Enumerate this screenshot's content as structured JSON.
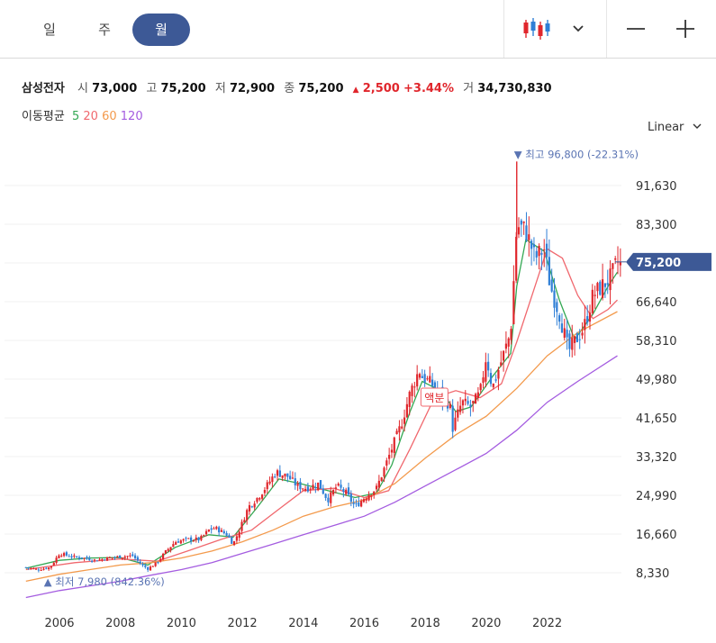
{
  "tabs": [
    "일",
    "주",
    "월"
  ],
  "active_tab": 2,
  "stock": {
    "name": "삼성전자",
    "open_label": "시",
    "open": "73,000",
    "high_label": "고",
    "high": "75,200",
    "low_label": "저",
    "low": "72,900",
    "close_label": "종",
    "close": "75,200",
    "change": "2,500",
    "change_pct": "+3.44%",
    "volume_label": "거",
    "volume": "34,730,830"
  },
  "ma": {
    "label": "이동평균",
    "items": [
      {
        "period": "5",
        "color": "#33a853"
      },
      {
        "period": "20",
        "color": "#f0686e"
      },
      {
        "period": "60",
        "color": "#f39a4c"
      },
      {
        "period": "120",
        "color": "#a45ce0"
      }
    ]
  },
  "scale_label": "Linear",
  "colors": {
    "up": "#e0262c",
    "down": "#2f7fd6",
    "accent": "#3d5996",
    "annotation": "#5a74b3"
  },
  "chart_data": {
    "type": "candlestick",
    "interval": "monthly",
    "x_ticks": [
      "2006",
      "2008",
      "2010",
      "2012",
      "2014",
      "2016",
      "2018",
      "2020",
      "2022"
    ],
    "y_ticks": [
      8330,
      16660,
      24990,
      33320,
      41650,
      49980,
      58310,
      66640,
      74970,
      83300,
      91630
    ],
    "y_tick_labels": [
      "8,330",
      "16,660",
      "24,990",
      "33,320",
      "41,650",
      "49,980",
      "58,310",
      "66,640",
      "",
      "83,300",
      "91,630"
    ],
    "ylim": [
      6000,
      103000
    ],
    "xlim": [
      2004.9,
      2024.4
    ],
    "current_price": {
      "value": 75200,
      "label": "75,200"
    },
    "annotations": {
      "high": {
        "value": 96800,
        "label": "최고 96,800 (-22.31%)",
        "x": 2021.0
      },
      "low": {
        "value": 7980,
        "label": "최저 7,980 (842.36%)",
        "x": 2004.9
      },
      "split": {
        "label": "액분",
        "x": 2018.3
      }
    },
    "close_path": [
      [
        2004.9,
        9.5
      ],
      [
        2005.3,
        9.0
      ],
      [
        2005.7,
        9.5
      ],
      [
        2006.0,
        12.5
      ],
      [
        2006.4,
        11.8
      ],
      [
        2006.8,
        11.5
      ],
      [
        2007.2,
        11.0
      ],
      [
        2007.6,
        11.5
      ],
      [
        2008.0,
        11.8
      ],
      [
        2008.4,
        12.0
      ],
      [
        2008.7,
        10.0
      ],
      [
        2008.9,
        9.2
      ],
      [
        2009.2,
        10.5
      ],
      [
        2009.5,
        13.0
      ],
      [
        2009.8,
        15.0
      ],
      [
        2010.2,
        15.5
      ],
      [
        2010.6,
        15.5
      ],
      [
        2010.9,
        17.5
      ],
      [
        2011.1,
        18.0
      ],
      [
        2011.5,
        16.5
      ],
      [
        2011.7,
        14.5
      ],
      [
        2011.9,
        17.5
      ],
      [
        2012.2,
        22.5
      ],
      [
        2012.5,
        24.5
      ],
      [
        2012.8,
        27.0
      ],
      [
        2013.1,
        30.0
      ],
      [
        2013.5,
        29.0
      ],
      [
        2013.8,
        27.0
      ],
      [
        2014.1,
        26.5
      ],
      [
        2014.5,
        27.5
      ],
      [
        2014.8,
        24.0
      ],
      [
        2015.1,
        27.0
      ],
      [
        2015.4,
        25.5
      ],
      [
        2015.7,
        22.5
      ],
      [
        2016.0,
        24.5
      ],
      [
        2016.4,
        26.5
      ],
      [
        2016.7,
        31.5
      ],
      [
        2016.9,
        35.0
      ],
      [
        2017.2,
        40.0
      ],
      [
        2017.5,
        47.0
      ],
      [
        2017.8,
        52.0
      ],
      [
        2017.9,
        50.5
      ],
      [
        2018.2,
        49.0
      ],
      [
        2018.5,
        46.5
      ],
      [
        2018.8,
        44.5
      ],
      [
        2018.9,
        39.5
      ],
      [
        2019.2,
        45.0
      ],
      [
        2019.5,
        44.0
      ],
      [
        2019.8,
        47.0
      ],
      [
        2020.0,
        55.0
      ],
      [
        2020.2,
        48.0
      ],
      [
        2020.5,
        54.0
      ],
      [
        2020.8,
        60.0
      ],
      [
        2020.9,
        71.0
      ],
      [
        2021.0,
        83.0
      ],
      [
        2021.3,
        82.0
      ],
      [
        2021.6,
        76.0
      ],
      [
        2021.9,
        78.0
      ],
      [
        2022.1,
        70.0
      ],
      [
        2022.4,
        64.0
      ],
      [
        2022.7,
        56.0
      ],
      [
        2022.9,
        58.0
      ],
      [
        2023.2,
        61.0
      ],
      [
        2023.5,
        68.0
      ],
      [
        2023.8,
        70.0
      ],
      [
        2024.1,
        72.0
      ],
      [
        2024.3,
        75.2
      ]
    ],
    "ma_series": [
      {
        "name": "5",
        "color": "#33a853",
        "points": [
          [
            2004.9,
            9.3
          ],
          [
            2006.0,
            11.0
          ],
          [
            2007.0,
            11.5
          ],
          [
            2008.0,
            11.6
          ],
          [
            2008.9,
            10.0
          ],
          [
            2009.8,
            13.8
          ],
          [
            2010.9,
            16.5
          ],
          [
            2011.7,
            16.0
          ],
          [
            2012.5,
            22.5
          ],
          [
            2013.2,
            28.5
          ],
          [
            2013.9,
            27.5
          ],
          [
            2014.8,
            26.0
          ],
          [
            2015.7,
            24.5
          ],
          [
            2016.4,
            25.5
          ],
          [
            2016.9,
            31.5
          ],
          [
            2017.5,
            43.0
          ],
          [
            2017.9,
            49.5
          ],
          [
            2018.5,
            47.5
          ],
          [
            2019.0,
            43.0
          ],
          [
            2019.5,
            44.0
          ],
          [
            2020.2,
            50.5
          ],
          [
            2020.8,
            55.5
          ],
          [
            2021.0,
            70.0
          ],
          [
            2021.3,
            80.0
          ],
          [
            2021.9,
            77.5
          ],
          [
            2022.4,
            67.0
          ],
          [
            2022.9,
            58.5
          ],
          [
            2023.5,
            64.0
          ],
          [
            2024.0,
            70.0
          ],
          [
            2024.3,
            73.0
          ]
        ]
      },
      {
        "name": "20",
        "color": "#f0686e",
        "points": [
          [
            2004.9,
            9.0
          ],
          [
            2006.5,
            10.5
          ],
          [
            2008.0,
            11.3
          ],
          [
            2009.2,
            10.8
          ],
          [
            2010.2,
            13.0
          ],
          [
            2011.3,
            15.5
          ],
          [
            2012.3,
            17.5
          ],
          [
            2013.2,
            22.0
          ],
          [
            2014.0,
            26.0
          ],
          [
            2015.0,
            26.5
          ],
          [
            2016.0,
            24.5
          ],
          [
            2016.8,
            26.0
          ],
          [
            2017.5,
            35.0
          ],
          [
            2018.3,
            46.0
          ],
          [
            2019.0,
            47.5
          ],
          [
            2019.8,
            46.0
          ],
          [
            2020.5,
            49.0
          ],
          [
            2021.0,
            58.0
          ],
          [
            2021.6,
            70.0
          ],
          [
            2022.0,
            78.0
          ],
          [
            2022.5,
            76.0
          ],
          [
            2023.0,
            68.0
          ],
          [
            2023.5,
            63.0
          ],
          [
            2024.0,
            65.0
          ],
          [
            2024.3,
            67.0
          ]
        ]
      },
      {
        "name": "60",
        "color": "#f39a4c",
        "points": [
          [
            2004.9,
            6.5
          ],
          [
            2006.0,
            8.0
          ],
          [
            2007.0,
            9.0
          ],
          [
            2008.0,
            10.0
          ],
          [
            2009.0,
            10.5
          ],
          [
            2010.0,
            11.5
          ],
          [
            2011.0,
            13.0
          ],
          [
            2012.0,
            15.0
          ],
          [
            2013.0,
            17.5
          ],
          [
            2014.0,
            20.5
          ],
          [
            2015.0,
            22.5
          ],
          [
            2016.0,
            24.0
          ],
          [
            2017.0,
            27.5
          ],
          [
            2018.0,
            33.0
          ],
          [
            2019.0,
            38.0
          ],
          [
            2020.0,
            42.0
          ],
          [
            2021.0,
            48.0
          ],
          [
            2022.0,
            55.0
          ],
          [
            2023.0,
            60.0
          ],
          [
            2024.3,
            64.5
          ]
        ]
      },
      {
        "name": "120",
        "color": "#a45ce0",
        "points": [
          [
            2004.9,
            3.0
          ],
          [
            2006.0,
            4.5
          ],
          [
            2007.0,
            5.5
          ],
          [
            2008.0,
            6.5
          ],
          [
            2009.0,
            7.8
          ],
          [
            2010.0,
            9.0
          ],
          [
            2011.0,
            10.5
          ],
          [
            2012.0,
            12.5
          ],
          [
            2013.0,
            14.5
          ],
          [
            2014.0,
            16.5
          ],
          [
            2015.0,
            18.5
          ],
          [
            2016.0,
            20.5
          ],
          [
            2017.0,
            23.5
          ],
          [
            2018.0,
            27.0
          ],
          [
            2019.0,
            30.5
          ],
          [
            2020.0,
            34.0
          ],
          [
            2021.0,
            39.0
          ],
          [
            2022.0,
            45.0
          ],
          [
            2023.0,
            49.5
          ],
          [
            2024.3,
            55.0
          ]
        ]
      }
    ]
  }
}
